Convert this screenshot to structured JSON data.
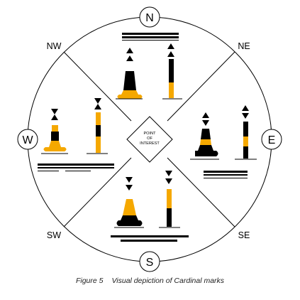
{
  "compass": {
    "north": "N",
    "south": "S",
    "east": "E",
    "west": "W",
    "northwest": "NW",
    "northeast": "NE",
    "southwest": "SW",
    "southeast": "SE"
  },
  "center_label": {
    "line1": "POINT",
    "line2": "OF",
    "line3": "INTEREST"
  },
  "colors": {
    "yellow": "#f5a800",
    "black": "#000000",
    "outline": "#000000"
  },
  "marks": [
    {
      "cardinal": "north",
      "topmark": "two cones pointing up",
      "colors": "black over yellow"
    },
    {
      "cardinal": "east",
      "topmark": "cones base to base",
      "colors": "black, yellow band, black"
    },
    {
      "cardinal": "south",
      "topmark": "two cones pointing down",
      "colors": "yellow over black"
    },
    {
      "cardinal": "west",
      "topmark": "cones point to point",
      "colors": "yellow, black band, yellow"
    }
  ],
  "caption": {
    "figure": "Figure 5",
    "text": "Visual depiction of Cardinal marks"
  }
}
